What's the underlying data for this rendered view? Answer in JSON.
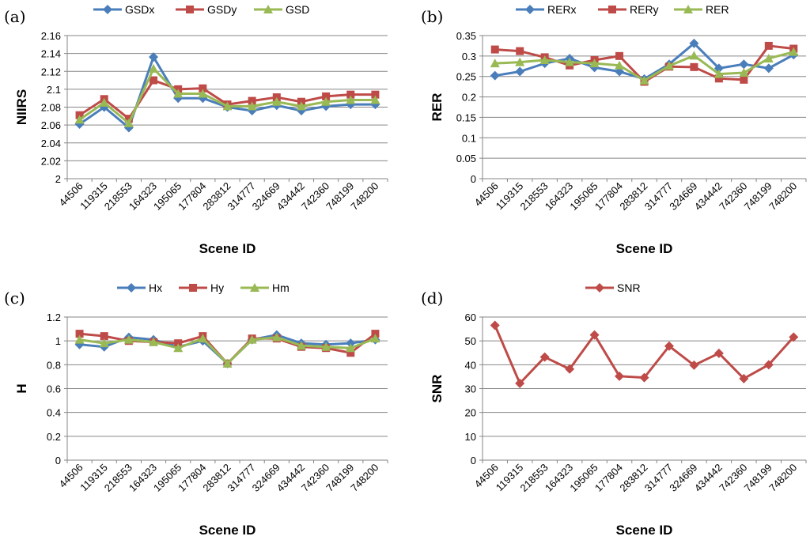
{
  "chart_data": [
    {
      "id": "a",
      "type": "line",
      "panel_label": "(a)",
      "categories": [
        "44506",
        "119315",
        "218553",
        "164323",
        "195065",
        "177804",
        "283812",
        "314777",
        "324669",
        "434442",
        "742360",
        "748199",
        "748200"
      ],
      "series": [
        {
          "name": "GSDx",
          "color": "#4a7ebb",
          "marker": "diamond",
          "values": [
            2.061,
            2.08,
            2.057,
            2.136,
            2.09,
            2.09,
            2.08,
            2.076,
            2.082,
            2.076,
            2.081,
            2.083,
            2.083
          ]
        },
        {
          "name": "GSDy",
          "color": "#be4b48",
          "marker": "square",
          "values": [
            2.071,
            2.089,
            2.067,
            2.11,
            2.1,
            2.101,
            2.083,
            2.087,
            2.091,
            2.086,
            2.092,
            2.094,
            2.094
          ]
        },
        {
          "name": "GSD",
          "color": "#98b954",
          "marker": "triangle",
          "values": [
            2.066,
            2.085,
            2.062,
            2.123,
            2.095,
            2.095,
            2.081,
            2.081,
            2.086,
            2.081,
            2.086,
            2.088,
            2.088
          ]
        }
      ],
      "xlabel": "Scene ID",
      "ylabel": "NIIRS",
      "ylim": [
        2,
        2.16
      ],
      "yticks": [
        "2",
        "2.02",
        "2.04",
        "2.06",
        "2.08",
        "2.1",
        "2.12",
        "2.14",
        "2.16"
      ],
      "grid": true,
      "legend": "top"
    },
    {
      "id": "b",
      "type": "line",
      "panel_label": "(b)",
      "categories": [
        "44506",
        "119315",
        "218553",
        "164323",
        "195065",
        "177804",
        "283812",
        "314777",
        "324669",
        "434442",
        "742360",
        "748199",
        "748200"
      ],
      "series": [
        {
          "name": "RERx",
          "color": "#4a7ebb",
          "marker": "diamond",
          "values": [
            0.252,
            0.262,
            0.282,
            0.294,
            0.272,
            0.262,
            0.244,
            0.28,
            0.331,
            0.27,
            0.28,
            0.27,
            0.303
          ]
        },
        {
          "name": "RERy",
          "color": "#be4b48",
          "marker": "square",
          "values": [
            0.316,
            0.312,
            0.297,
            0.277,
            0.29,
            0.3,
            0.237,
            0.274,
            0.273,
            0.245,
            0.242,
            0.325,
            0.318
          ]
        },
        {
          "name": "RER",
          "color": "#98b954",
          "marker": "triangle",
          "values": [
            0.282,
            0.285,
            0.29,
            0.285,
            0.282,
            0.277,
            0.24,
            0.276,
            0.301,
            0.256,
            0.259,
            0.294,
            0.31
          ]
        }
      ],
      "xlabel": "Scene ID",
      "ylabel": "RER",
      "ylim": [
        0,
        0.35
      ],
      "yticks": [
        "0",
        "0.05",
        "0.1",
        "0.15",
        "0.2",
        "0.25",
        "0.3",
        "0.35"
      ],
      "grid": true,
      "legend": "top"
    },
    {
      "id": "c",
      "type": "line",
      "panel_label": "(c)",
      "categories": [
        "44506",
        "119315",
        "218553",
        "164323",
        "195065",
        "177804",
        "283812",
        "314777",
        "324669",
        "434442",
        "742360",
        "748199",
        "748200"
      ],
      "series": [
        {
          "name": "Hx",
          "color": "#4a7ebb",
          "marker": "diamond",
          "values": [
            0.97,
            0.95,
            1.03,
            1.01,
            0.95,
            1.0,
            0.81,
            1.01,
            1.05,
            0.98,
            0.97,
            0.98,
            1.01
          ]
        },
        {
          "name": "Hy",
          "color": "#be4b48",
          "marker": "square",
          "values": [
            1.06,
            1.04,
            1.0,
            0.99,
            0.98,
            1.04,
            0.81,
            1.02,
            1.02,
            0.95,
            0.94,
            0.9,
            1.06
          ]
        },
        {
          "name": "Hm",
          "color": "#98b954",
          "marker": "triangle",
          "values": [
            1.01,
            0.98,
            1.01,
            0.99,
            0.94,
            1.02,
            0.81,
            1.01,
            1.03,
            0.96,
            0.95,
            0.94,
            1.02
          ]
        }
      ],
      "xlabel": "Scene ID",
      "ylabel": "H",
      "ylim": [
        0,
        1.2
      ],
      "yticks": [
        "0",
        "0.2",
        "0.4",
        "0.6",
        "0.8",
        "1",
        "1.2"
      ],
      "grid": true,
      "legend": "top"
    },
    {
      "id": "d",
      "type": "line",
      "panel_label": "(d)",
      "categories": [
        "44506",
        "119315",
        "218553",
        "164323",
        "195065",
        "177804",
        "283812",
        "314777",
        "324669",
        "434442",
        "742360",
        "748199",
        "748200"
      ],
      "series": [
        {
          "name": "SNR",
          "color": "#be4b48",
          "marker": "diamond",
          "values": [
            56.5,
            32.2,
            43.2,
            38.2,
            52.5,
            35.2,
            34.6,
            47.8,
            39.8,
            44.8,
            34.2,
            40.0,
            51.6
          ]
        }
      ],
      "xlabel": "Scene ID",
      "ylabel": "SNR",
      "ylim": [
        0,
        60
      ],
      "yticks": [
        "0",
        "10",
        "20",
        "30",
        "40",
        "50",
        "60"
      ],
      "grid": true,
      "legend": "top"
    }
  ]
}
